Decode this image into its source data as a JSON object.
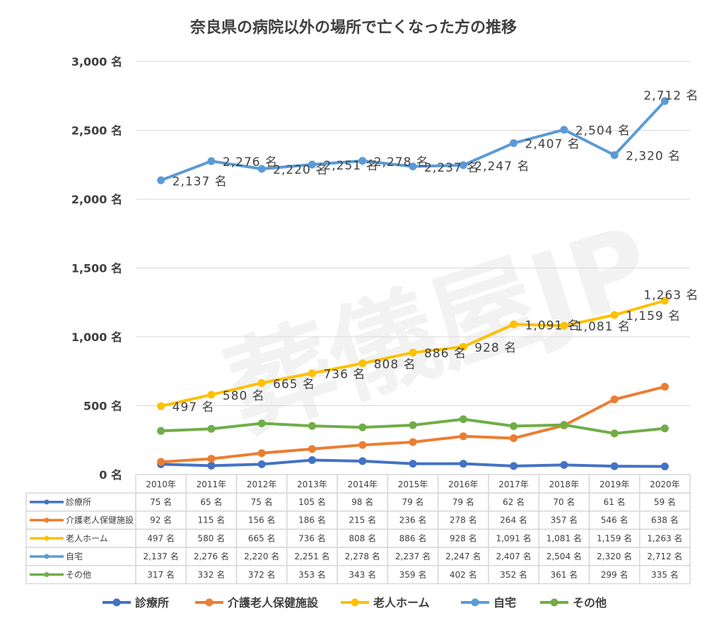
{
  "watermark": "葬儀屋JP",
  "chart_data": {
    "type": "line",
    "title": "奈良県の病院以外の場所で亡くなった方の推移",
    "xlabel": "",
    "ylabel": "",
    "ylim": [
      0,
      3000
    ],
    "unit": "名",
    "y_ticks": [
      0,
      500,
      1000,
      1500,
      2000,
      2500,
      3000
    ],
    "y_tick_labels": [
      "0 名",
      "500 名",
      "1,000 名",
      "1,500 名",
      "2,000 名",
      "2,500 名",
      "3,000 名"
    ],
    "grid": true,
    "legend_position": "bottom",
    "categories": [
      "2010年",
      "2011年",
      "2012年",
      "2013年",
      "2014年",
      "2015年",
      "2016年",
      "2017年",
      "2018年",
      "2019年",
      "2020年"
    ],
    "series": [
      {
        "name": "診療所",
        "color": "#4472C4",
        "show_labels": false,
        "values": [
          75,
          65,
          75,
          105,
          98,
          79,
          79,
          62,
          70,
          61,
          59
        ]
      },
      {
        "name": "介護老人保健施設",
        "color": "#ED7D31",
        "show_labels": false,
        "values": [
          92,
          115,
          156,
          186,
          215,
          236,
          278,
          264,
          357,
          546,
          638
        ]
      },
      {
        "name": "老人ホーム",
        "color": "#FFC000",
        "show_labels": true,
        "values": [
          497,
          580,
          665,
          736,
          808,
          886,
          928,
          1091,
          1081,
          1159,
          1263
        ]
      },
      {
        "name": "自宅",
        "color": "#5B9BD5",
        "show_labels": true,
        "values": [
          2137,
          2276,
          2220,
          2251,
          2278,
          2237,
          2247,
          2407,
          2504,
          2320,
          2712
        ]
      },
      {
        "name": "その他",
        "color": "#70AD47",
        "show_labels": false,
        "values": [
          317,
          332,
          372,
          353,
          343,
          359,
          402,
          352,
          361,
          299,
          335
        ]
      }
    ]
  }
}
